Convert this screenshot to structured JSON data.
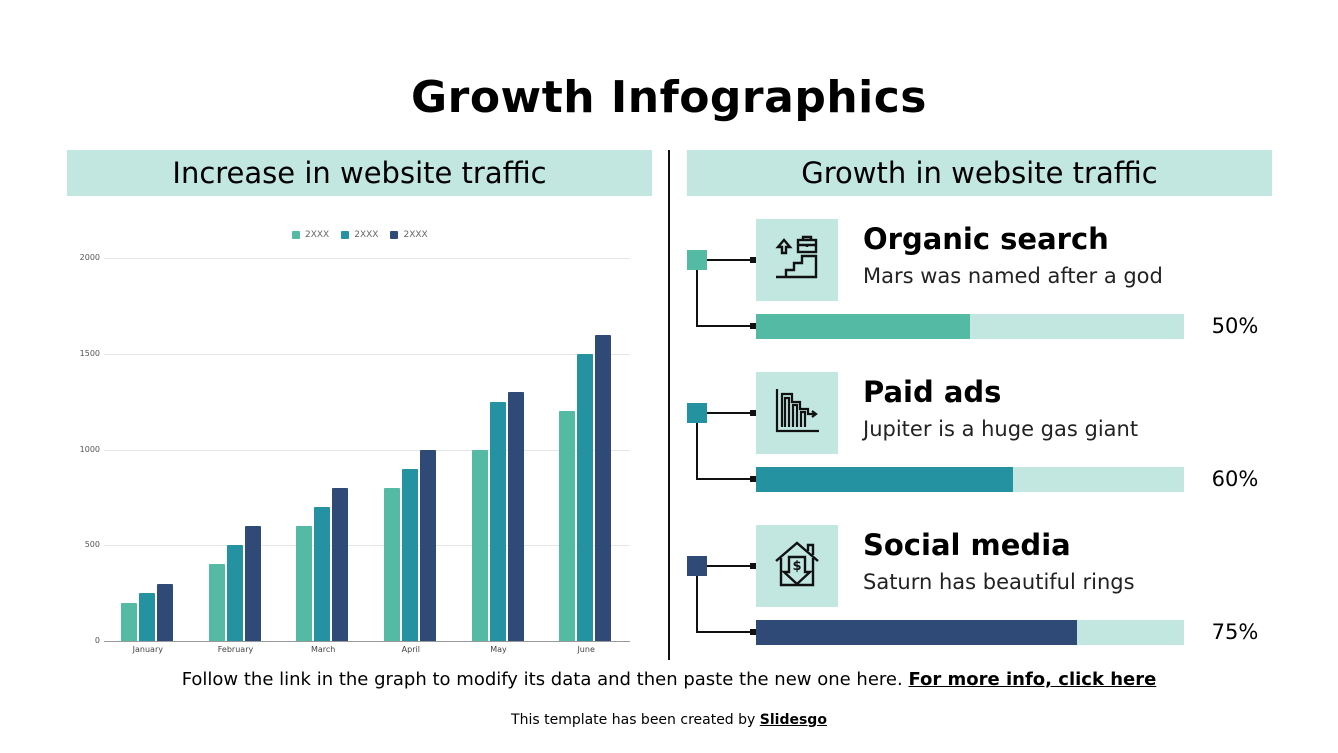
{
  "title": "Growth Infographics",
  "left_panel": {
    "heading": "Increase in website traffic"
  },
  "right_panel": {
    "heading": "Growth in website traffic",
    "items": [
      {
        "title": "Organic search",
        "desc": "Mars was named after a god",
        "percent": 50,
        "percent_label": "50%",
        "color": "#55baa3",
        "icon": "career-stairs-briefcase-icon"
      },
      {
        "title": "Paid ads",
        "desc": "Jupiter is a huge gas giant",
        "percent": 60,
        "percent_label": "60%",
        "color": "#2592a2",
        "icon": "bar-chart-decline-arrow-icon"
      },
      {
        "title": "Social media",
        "desc": "Saturn has beautiful rings",
        "percent": 75,
        "percent_label": "75%",
        "color": "#304a78",
        "icon": "house-dollar-down-icon"
      }
    ],
    "track_color": "#c1e7e0"
  },
  "chart_data": {
    "type": "bar",
    "title": "",
    "xlabel": "",
    "ylabel": "",
    "categories": [
      "January",
      "February",
      "March",
      "April",
      "May",
      "June"
    ],
    "series": [
      {
        "name": "2XXX",
        "color": "#55baa3",
        "values": [
          200,
          400,
          600,
          800,
          1000,
          1200
        ]
      },
      {
        "name": "2XXX",
        "color": "#2592a2",
        "values": [
          250,
          500,
          700,
          900,
          1250,
          1500
        ]
      },
      {
        "name": "2XXX",
        "color": "#304a78",
        "values": [
          300,
          600,
          800,
          1000,
          1300,
          1600
        ]
      }
    ],
    "yticks": [
      0,
      500,
      1000,
      1500,
      2000
    ],
    "ylim": [
      0,
      2000
    ],
    "grid": true,
    "legend_position": "top"
  },
  "footer": {
    "note": "Follow the link in the graph to modify its data and then paste the new one here. ",
    "link": "For more info, click here",
    "credit": "This template has been created by ",
    "credit_link": "Slidesgo"
  }
}
